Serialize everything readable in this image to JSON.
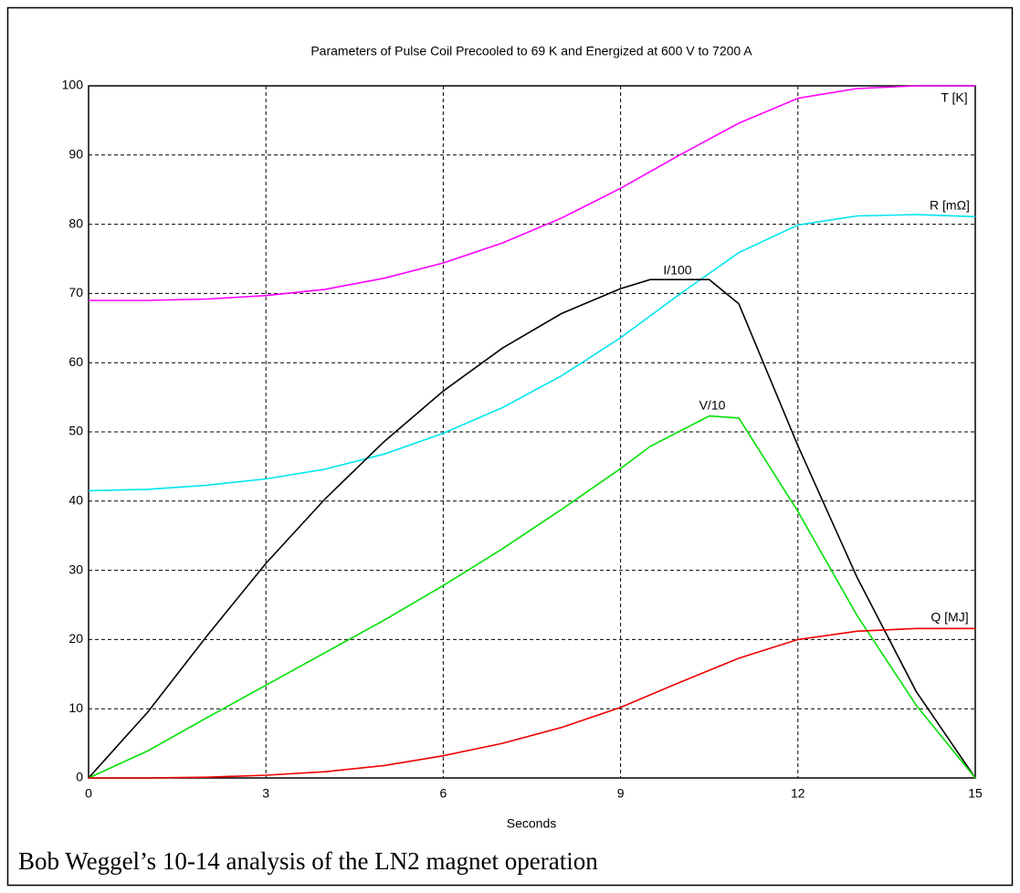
{
  "chart_data": {
    "type": "line",
    "title": "Parameters of Pulse Coil Precooled to 69 K and Energized at 600 V to 7200 A",
    "xlabel": "Seconds",
    "caption": "Bob Weggel’s 10-14 analysis of the LN2 magnet operation",
    "xlim": [
      0,
      15
    ],
    "xticks": [
      0,
      3,
      6,
      9,
      12,
      15
    ],
    "ylim": [
      0,
      100
    ],
    "yticks": [
      0,
      10,
      20,
      30,
      40,
      50,
      60,
      70,
      80,
      90,
      100
    ],
    "grid": true,
    "series": [
      {
        "name": "T [K]",
        "color": "#ff00ff",
        "x": [
          0,
          1,
          2,
          3,
          4,
          5,
          6,
          7,
          8,
          9,
          10,
          11,
          12,
          13,
          14,
          15
        ],
        "values": [
          69,
          69,
          69.2,
          69.7,
          70.6,
          72.2,
          74.4,
          77.3,
          80.9,
          85.2,
          90.0,
          94.6,
          98.2,
          99.6,
          100,
          100
        ]
      },
      {
        "name": "R [mΩ]",
        "color": "#00e5ee",
        "x": [
          0,
          1,
          2,
          3,
          4,
          5,
          6,
          7,
          8,
          9,
          10,
          11,
          12,
          13,
          14,
          15
        ],
        "values": [
          41.5,
          41.7,
          42.3,
          43.2,
          44.6,
          46.8,
          49.8,
          53.5,
          58.1,
          63.6,
          69.9,
          75.9,
          79.9,
          81.2,
          81.4,
          81.1
        ]
      },
      {
        "name": "I/100",
        "color": "#000000",
        "x": [
          0,
          1,
          2,
          3,
          4,
          5,
          6,
          7,
          8,
          9,
          9.5,
          10.5,
          11,
          12,
          13,
          14,
          15
        ],
        "values": [
          0,
          9.5,
          20.5,
          31,
          40.3,
          48.6,
          55.9,
          62.1,
          67.1,
          70.7,
          72,
          72,
          68.5,
          48,
          29,
          12.5,
          0
        ]
      },
      {
        "name": "V/10",
        "color": "#00e000",
        "x": [
          0,
          1,
          2,
          3,
          4,
          5,
          6,
          7,
          8,
          9,
          9.5,
          10.5,
          11,
          12,
          13,
          14,
          15
        ],
        "values": [
          0,
          3.9,
          8.7,
          13.4,
          18.1,
          22.8,
          27.8,
          33.1,
          38.8,
          44.7,
          47.9,
          52.3,
          52,
          38.5,
          23.5,
          10.5,
          0
        ]
      },
      {
        "name": "Q [MJ]",
        "color": "#ee0000",
        "x": [
          0,
          1,
          2,
          3,
          4,
          5,
          6,
          7,
          8,
          9,
          10,
          11,
          12,
          13,
          14,
          15
        ],
        "values": [
          0,
          0,
          0.1,
          0.4,
          0.9,
          1.8,
          3.2,
          5,
          7.3,
          10.2,
          13.8,
          17.3,
          20,
          21.2,
          21.6,
          21.6
        ]
      }
    ]
  }
}
